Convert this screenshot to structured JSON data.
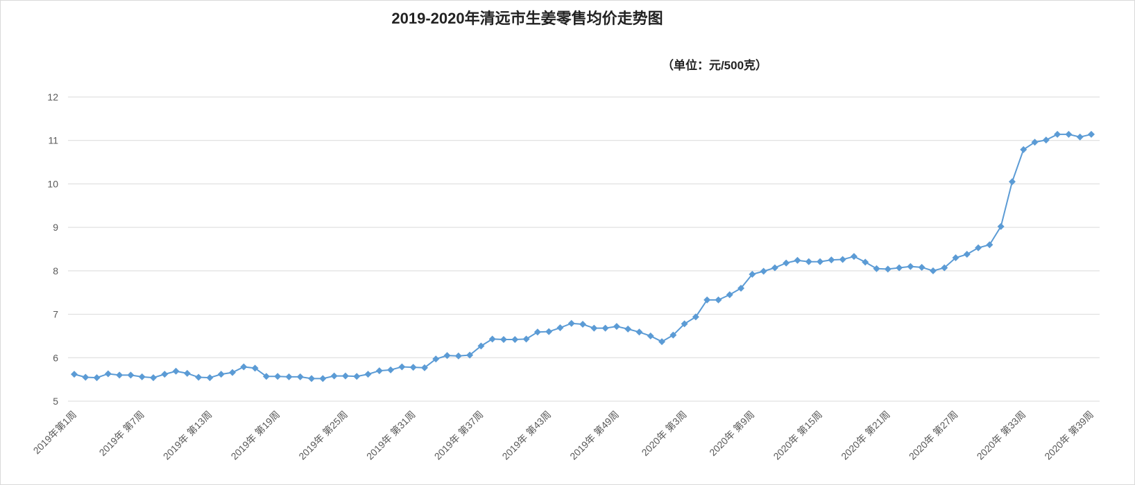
{
  "chart_data": {
    "type": "line",
    "title": "2019-2020年清远市生姜零售均价走势图",
    "subtitle": "（单位：元/500克）",
    "categories": [
      "2019年第1周",
      null,
      null,
      null,
      null,
      null,
      "2019年 第7周",
      null,
      null,
      null,
      null,
      null,
      "2019年 第13周",
      null,
      null,
      null,
      null,
      null,
      "2019年 第19周",
      null,
      null,
      null,
      null,
      null,
      "2019年 第25周",
      null,
      null,
      null,
      null,
      null,
      "2019年 第31周",
      null,
      null,
      null,
      null,
      null,
      "2019年 第37周",
      null,
      null,
      null,
      null,
      null,
      "2019年 第43周",
      null,
      null,
      null,
      null,
      null,
      "2019年 第49周",
      null,
      null,
      null,
      null,
      null,
      "2020年 第3周",
      null,
      null,
      null,
      null,
      null,
      "2020年 第9周",
      null,
      null,
      null,
      null,
      null,
      "2020年 第15周",
      null,
      null,
      null,
      null,
      null,
      "2020年 第21周",
      null,
      null,
      null,
      null,
      null,
      "2020年 第27周",
      null,
      null,
      null,
      null,
      null,
      "2020年 第33周",
      null,
      null,
      null,
      null,
      null,
      "2020年 第39周"
    ],
    "values": [
      5.62,
      5.55,
      5.54,
      5.63,
      5.6,
      5.6,
      5.56,
      5.54,
      5.62,
      5.69,
      5.64,
      5.55,
      5.54,
      5.62,
      5.66,
      5.79,
      5.76,
      5.57,
      5.57,
      5.56,
      5.56,
      5.52,
      5.52,
      5.58,
      5.58,
      5.57,
      5.62,
      5.7,
      5.72,
      5.79,
      5.78,
      5.77,
      5.97,
      6.05,
      6.04,
      6.06,
      6.27,
      6.43,
      6.42,
      6.42,
      6.43,
      6.59,
      6.6,
      6.69,
      6.79,
      6.77,
      6.68,
      6.68,
      6.72,
      6.66,
      6.59,
      6.5,
      6.37,
      6.52,
      6.78,
      6.94,
      7.33,
      7.33,
      7.45,
      7.6,
      7.92,
      7.99,
      8.07,
      8.18,
      8.24,
      8.21,
      8.21,
      8.25,
      8.26,
      8.33,
      8.2,
      8.05,
      8.04,
      8.07,
      8.1,
      8.08,
      8.0,
      8.07,
      8.3,
      8.38,
      8.53,
      8.6,
      9.02,
      10.05,
      10.79,
      10.96,
      11.01,
      11.14,
      11.14,
      11.08,
      11.14
    ],
    "color": "#5b9bd5",
    "ylim": [
      5,
      12
    ],
    "yticks": [
      5,
      6,
      7,
      8,
      9,
      10,
      11,
      12
    ],
    "grid": true
  }
}
